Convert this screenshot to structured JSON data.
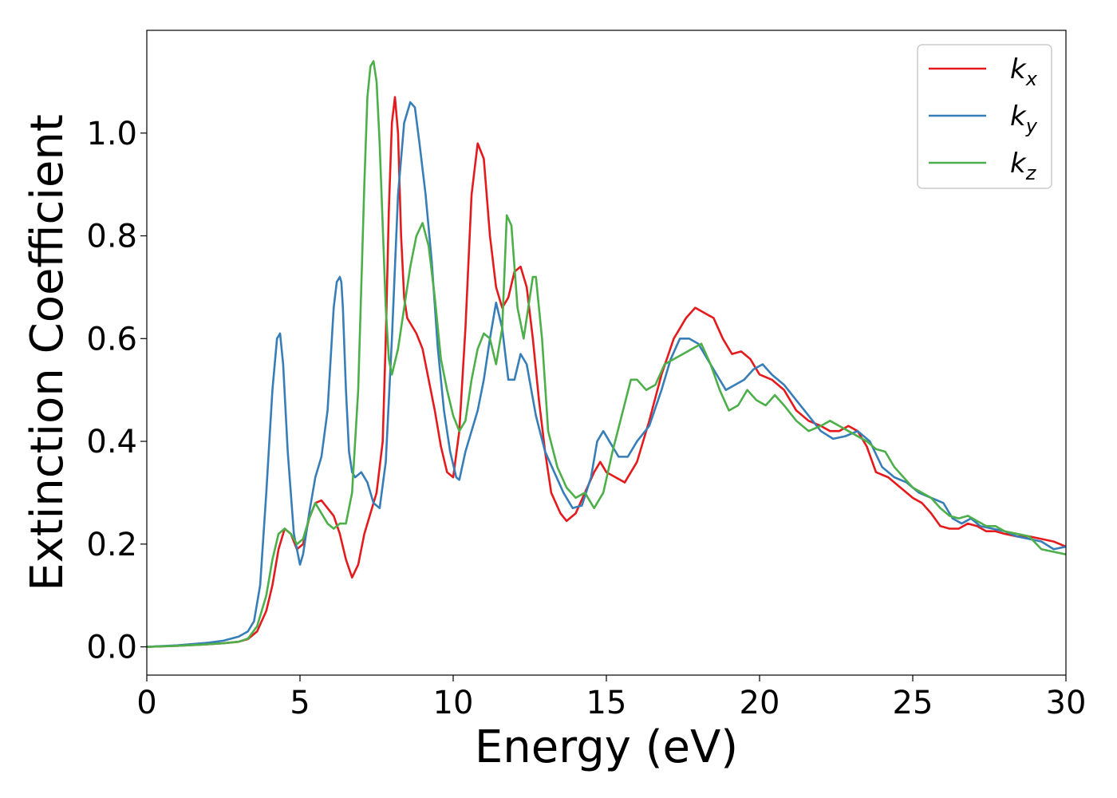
{
  "chart_data": {
    "type": "line",
    "xlabel": "Energy (eV)",
    "ylabel": "Extinction Coefficient",
    "xlim": [
      0,
      30
    ],
    "ylim": [
      -0.055,
      1.2
    ],
    "xticks": [
      0,
      5,
      10,
      15,
      20,
      25,
      30
    ],
    "xtick_labels": [
      "0",
      "5",
      "10",
      "15",
      "20",
      "25",
      "30"
    ],
    "yticks": [
      0.0,
      0.2,
      0.4,
      0.6,
      0.8,
      1.0
    ],
    "ytick_labels": [
      "0.0",
      "0.2",
      "0.4",
      "0.6",
      "0.8",
      "1.0"
    ],
    "grid": false,
    "legend_position": "top-right",
    "series": [
      {
        "name": "k_x",
        "label_base": "k",
        "label_sub": "x",
        "color": "#e41a1c",
        "x": [
          0,
          1,
          2,
          2.5,
          3,
          3.3,
          3.6,
          3.9,
          4.1,
          4.3,
          4.5,
          4.7,
          4.9,
          5.1,
          5.3,
          5.5,
          5.7,
          5.9,
          6.1,
          6.3,
          6.5,
          6.7,
          6.9,
          7.1,
          7.3,
          7.5,
          7.7,
          7.8,
          7.9,
          8.0,
          8.1,
          8.2,
          8.3,
          8.4,
          8.5,
          8.6,
          8.8,
          9.0,
          9.2,
          9.4,
          9.6,
          9.8,
          10.0,
          10.2,
          10.4,
          10.6,
          10.8,
          11.0,
          11.2,
          11.4,
          11.6,
          11.8,
          12.0,
          12.2,
          12.4,
          12.6,
          12.8,
          13.0,
          13.2,
          13.5,
          13.7,
          14.0,
          14.3,
          14.6,
          14.8,
          15.0,
          15.3,
          15.6,
          16.0,
          16.4,
          16.8,
          17.2,
          17.6,
          17.9,
          18.2,
          18.5,
          18.8,
          19.1,
          19.4,
          19.7,
          20.0,
          20.4,
          20.8,
          21.2,
          21.6,
          22.0,
          22.3,
          22.6,
          22.9,
          23.2,
          23.5,
          23.8,
          24.2,
          24.6,
          25.0,
          25.3,
          25.6,
          25.9,
          26.2,
          26.5,
          26.8,
          27.1,
          27.4,
          27.7,
          28.0,
          28.4,
          28.8,
          29.2,
          29.6,
          30.0
        ],
        "values": [
          0.0,
          0.002,
          0.005,
          0.007,
          0.01,
          0.015,
          0.03,
          0.07,
          0.12,
          0.19,
          0.23,
          0.22,
          0.19,
          0.2,
          0.25,
          0.28,
          0.285,
          0.27,
          0.255,
          0.22,
          0.17,
          0.135,
          0.16,
          0.22,
          0.26,
          0.3,
          0.4,
          0.6,
          0.85,
          1.02,
          1.07,
          1.0,
          0.8,
          0.68,
          0.64,
          0.63,
          0.61,
          0.58,
          0.52,
          0.46,
          0.39,
          0.34,
          0.33,
          0.42,
          0.62,
          0.88,
          0.98,
          0.95,
          0.8,
          0.7,
          0.66,
          0.68,
          0.73,
          0.74,
          0.7,
          0.6,
          0.48,
          0.38,
          0.3,
          0.26,
          0.245,
          0.26,
          0.3,
          0.34,
          0.36,
          0.34,
          0.33,
          0.32,
          0.36,
          0.44,
          0.53,
          0.6,
          0.64,
          0.66,
          0.65,
          0.64,
          0.6,
          0.57,
          0.575,
          0.56,
          0.53,
          0.52,
          0.5,
          0.46,
          0.44,
          0.43,
          0.42,
          0.42,
          0.43,
          0.42,
          0.39,
          0.34,
          0.33,
          0.31,
          0.29,
          0.28,
          0.26,
          0.235,
          0.23,
          0.23,
          0.24,
          0.235,
          0.225,
          0.225,
          0.22,
          0.215,
          0.215,
          0.21,
          0.205,
          0.195
        ]
      },
      {
        "name": "k_y",
        "label_base": "k",
        "label_sub": "y",
        "color": "#377eb8",
        "x": [
          0,
          1,
          2,
          2.5,
          3,
          3.3,
          3.5,
          3.7,
          3.9,
          4.1,
          4.25,
          4.35,
          4.45,
          4.6,
          4.8,
          5.0,
          5.1,
          5.3,
          5.5,
          5.7,
          5.9,
          6.0,
          6.1,
          6.2,
          6.3,
          6.35,
          6.4,
          6.5,
          6.6,
          6.7,
          6.8,
          7.0,
          7.2,
          7.4,
          7.6,
          7.8,
          8.0,
          8.2,
          8.4,
          8.6,
          8.75,
          8.9,
          9.1,
          9.3,
          9.5,
          9.7,
          9.9,
          10.1,
          10.2,
          10.4,
          10.6,
          10.8,
          11.0,
          11.2,
          11.4,
          11.6,
          11.8,
          12.0,
          12.2,
          12.4,
          12.7,
          13.0,
          13.3,
          13.6,
          13.9,
          14.2,
          14.5,
          14.7,
          14.9,
          15.1,
          15.4,
          15.7,
          16.0,
          16.4,
          16.8,
          17.1,
          17.4,
          17.7,
          18.0,
          18.3,
          18.6,
          18.9,
          19.2,
          19.5,
          19.8,
          20.1,
          20.4,
          20.8,
          21.2,
          21.6,
          22.0,
          22.4,
          22.8,
          23.2,
          23.6,
          24.0,
          24.4,
          24.8,
          25.2,
          25.6,
          26.0,
          26.3,
          26.6,
          26.9,
          27.2,
          27.6,
          28.0,
          28.4,
          28.8,
          29.2,
          29.6,
          30.0
        ],
        "values": [
          0.0,
          0.003,
          0.008,
          0.012,
          0.02,
          0.03,
          0.05,
          0.12,
          0.3,
          0.5,
          0.6,
          0.61,
          0.55,
          0.38,
          0.22,
          0.16,
          0.18,
          0.26,
          0.33,
          0.37,
          0.46,
          0.56,
          0.66,
          0.71,
          0.72,
          0.71,
          0.66,
          0.5,
          0.38,
          0.34,
          0.33,
          0.34,
          0.32,
          0.28,
          0.27,
          0.36,
          0.6,
          0.88,
          1.02,
          1.06,
          1.05,
          0.98,
          0.88,
          0.75,
          0.58,
          0.46,
          0.38,
          0.33,
          0.325,
          0.38,
          0.42,
          0.46,
          0.52,
          0.6,
          0.67,
          0.62,
          0.52,
          0.52,
          0.57,
          0.55,
          0.45,
          0.38,
          0.34,
          0.3,
          0.27,
          0.275,
          0.33,
          0.4,
          0.42,
          0.4,
          0.37,
          0.37,
          0.4,
          0.43,
          0.5,
          0.56,
          0.6,
          0.6,
          0.59,
          0.56,
          0.53,
          0.5,
          0.51,
          0.52,
          0.54,
          0.55,
          0.53,
          0.51,
          0.48,
          0.45,
          0.42,
          0.405,
          0.41,
          0.42,
          0.4,
          0.35,
          0.33,
          0.32,
          0.3,
          0.29,
          0.28,
          0.25,
          0.24,
          0.25,
          0.235,
          0.23,
          0.225,
          0.215,
          0.21,
          0.205,
          0.19,
          0.195
        ]
      },
      {
        "name": "k_z",
        "label_base": "k",
        "label_sub": "z",
        "color": "#4daf4a",
        "x": [
          0,
          1,
          2,
          2.5,
          3,
          3.3,
          3.6,
          3.9,
          4.1,
          4.3,
          4.5,
          4.7,
          4.9,
          5.1,
          5.3,
          5.5,
          5.7,
          5.9,
          6.1,
          6.3,
          6.5,
          6.7,
          6.9,
          7.0,
          7.1,
          7.2,
          7.3,
          7.4,
          7.5,
          7.6,
          7.7,
          7.8,
          7.9,
          8.0,
          8.2,
          8.4,
          8.6,
          8.8,
          9.0,
          9.2,
          9.4,
          9.6,
          9.8,
          10.0,
          10.2,
          10.4,
          10.6,
          10.8,
          11.0,
          11.2,
          11.4,
          11.6,
          11.75,
          11.9,
          12.1,
          12.3,
          12.5,
          12.6,
          12.7,
          12.9,
          13.1,
          13.4,
          13.7,
          14.0,
          14.3,
          14.6,
          14.9,
          15.2,
          15.5,
          15.8,
          16.0,
          16.3,
          16.6,
          16.9,
          17.2,
          17.5,
          17.8,
          18.1,
          18.4,
          18.7,
          19.0,
          19.3,
          19.6,
          19.9,
          20.2,
          20.5,
          20.8,
          21.2,
          21.6,
          22.0,
          22.3,
          22.6,
          22.9,
          23.2,
          23.5,
          23.8,
          24.1,
          24.4,
          24.7,
          25.0,
          25.3,
          25.6,
          25.9,
          26.2,
          26.5,
          26.8,
          27.1,
          27.4,
          27.7,
          28.0,
          28.4,
          28.8,
          29.2,
          29.6,
          30.0
        ],
        "values": [
          0.0,
          0.002,
          0.005,
          0.007,
          0.01,
          0.016,
          0.04,
          0.1,
          0.17,
          0.22,
          0.23,
          0.22,
          0.2,
          0.21,
          0.25,
          0.28,
          0.26,
          0.24,
          0.23,
          0.24,
          0.24,
          0.3,
          0.5,
          0.7,
          0.9,
          1.07,
          1.13,
          1.14,
          1.1,
          0.98,
          0.82,
          0.66,
          0.56,
          0.53,
          0.58,
          0.66,
          0.74,
          0.8,
          0.825,
          0.78,
          0.68,
          0.56,
          0.5,
          0.45,
          0.42,
          0.44,
          0.52,
          0.58,
          0.61,
          0.6,
          0.55,
          0.62,
          0.84,
          0.82,
          0.66,
          0.6,
          0.68,
          0.72,
          0.72,
          0.6,
          0.42,
          0.35,
          0.31,
          0.29,
          0.3,
          0.27,
          0.3,
          0.38,
          0.45,
          0.52,
          0.52,
          0.5,
          0.51,
          0.55,
          0.56,
          0.57,
          0.58,
          0.59,
          0.55,
          0.5,
          0.46,
          0.47,
          0.5,
          0.48,
          0.47,
          0.49,
          0.47,
          0.44,
          0.42,
          0.43,
          0.44,
          0.43,
          0.42,
          0.41,
          0.4,
          0.385,
          0.38,
          0.35,
          0.33,
          0.31,
          0.3,
          0.29,
          0.27,
          0.255,
          0.25,
          0.255,
          0.245,
          0.235,
          0.235,
          0.225,
          0.22,
          0.215,
          0.19,
          0.185,
          0.18
        ]
      }
    ]
  }
}
